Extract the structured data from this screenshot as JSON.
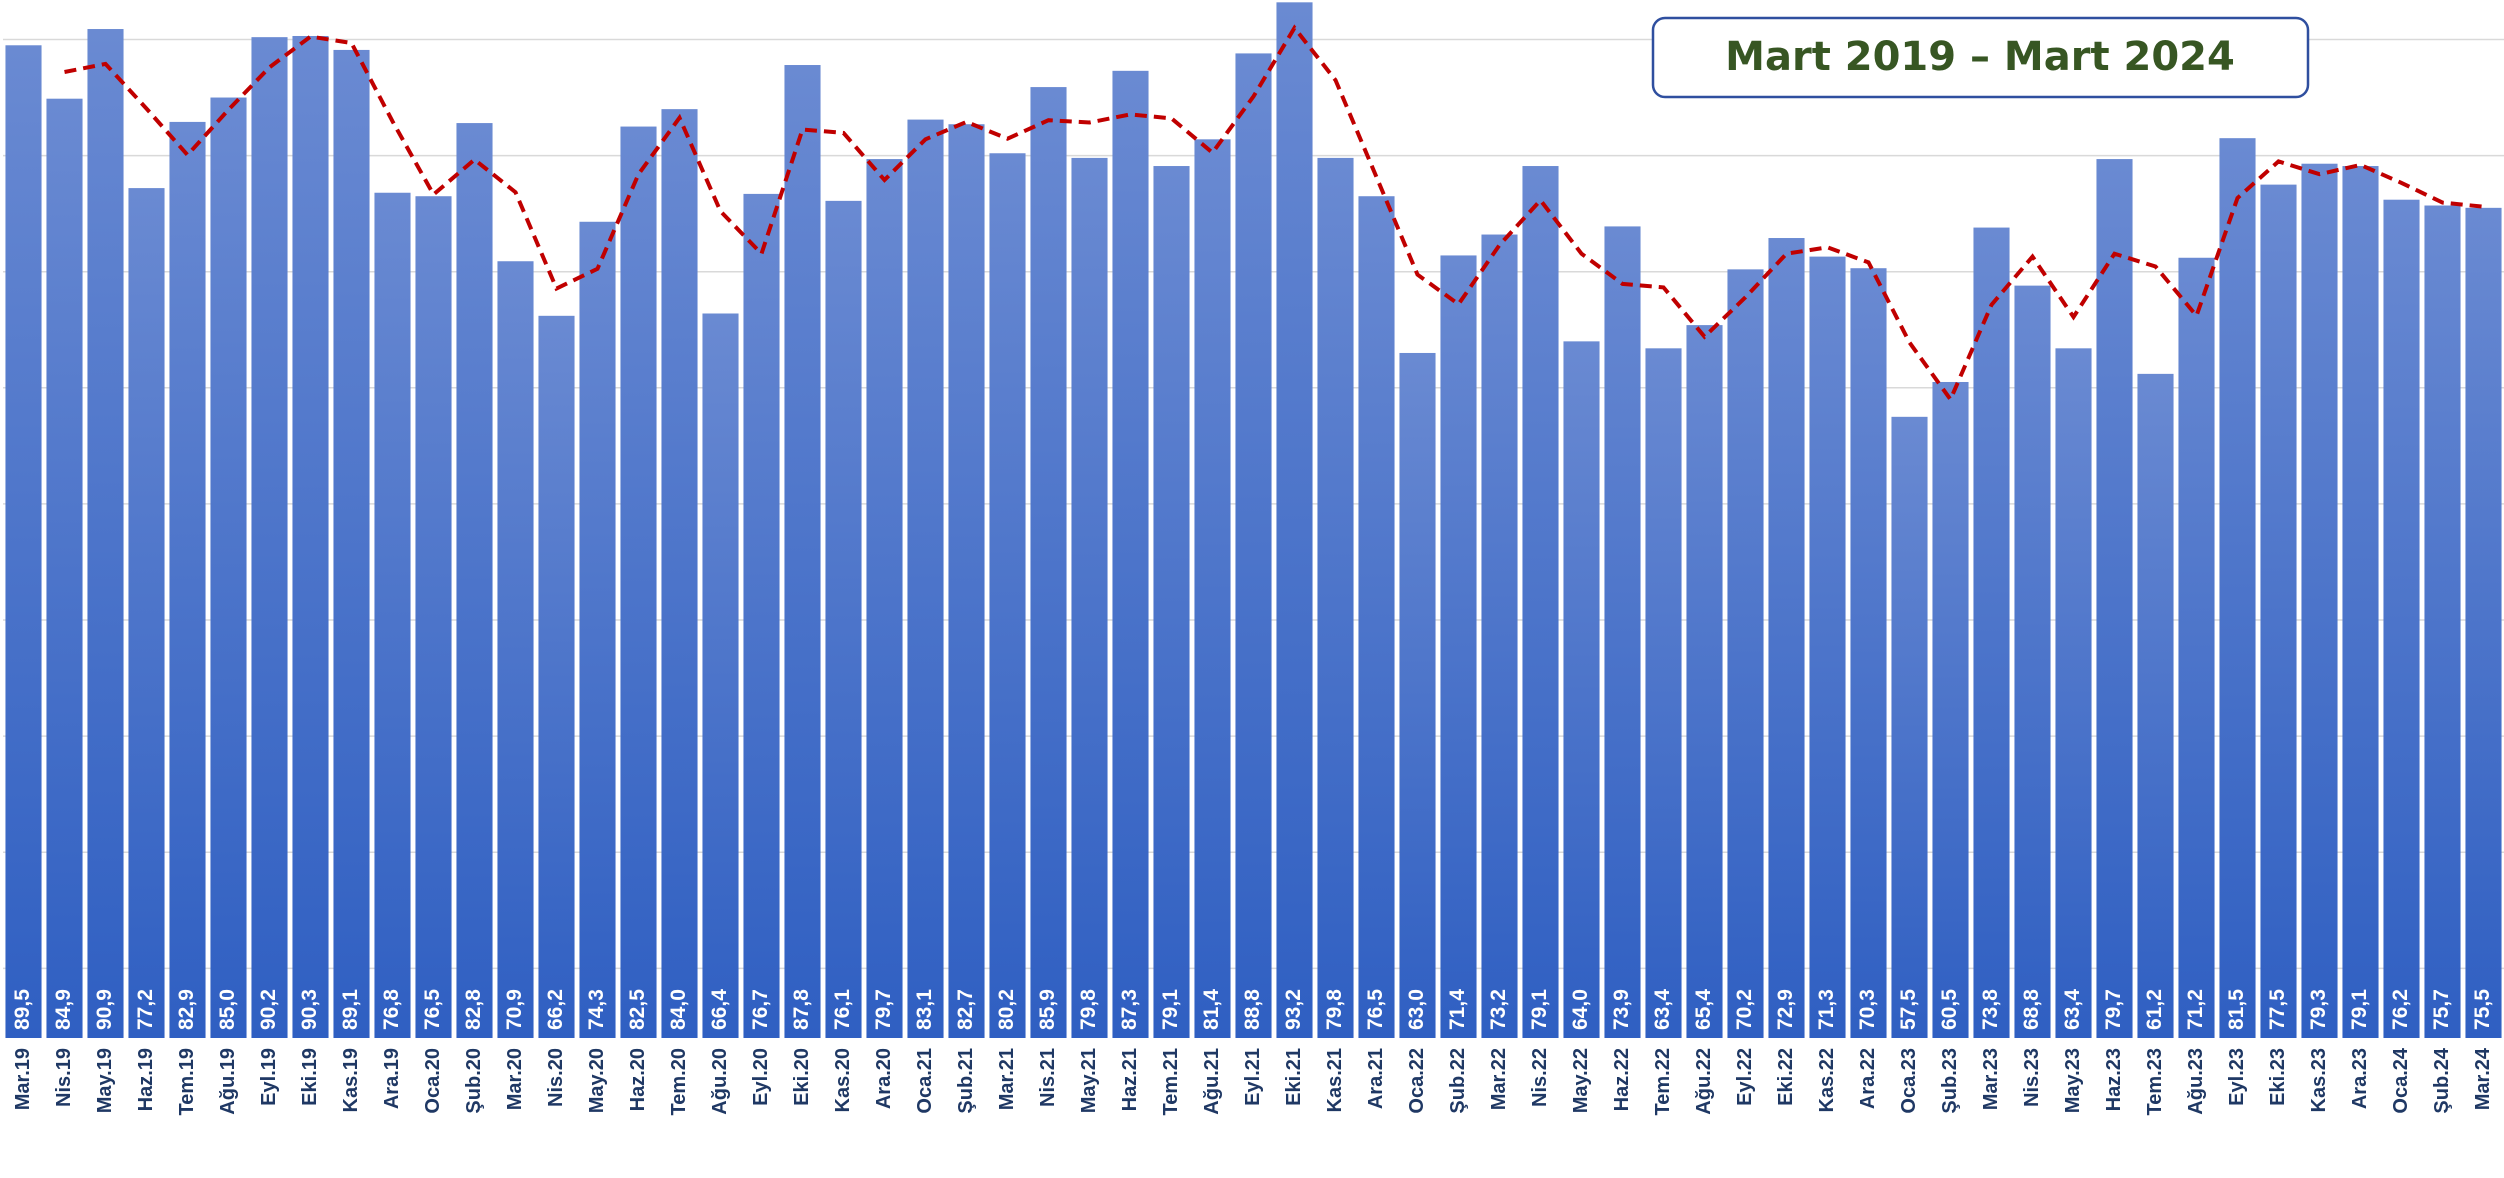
{
  "chart_data": {
    "type": "bar",
    "title": "Mart 2019 – Mart 2024",
    "categories": [
      "Mar.19",
      "Nis.19",
      "May.19",
      "Haz.19",
      "Tem.19",
      "Ağu.19",
      "Eyl.19",
      "Eki.19",
      "Kas.19",
      "Ara.19",
      "Oca.20",
      "Şub.20",
      "Mar.20",
      "Nis.20",
      "May.20",
      "Haz.20",
      "Tem.20",
      "Ağu.20",
      "Eyl.20",
      "Eki.20",
      "Kas.20",
      "Ara.20",
      "Oca.21",
      "Şub.21",
      "Mar.21",
      "Nis.21",
      "May.21",
      "Haz.21",
      "Tem.21",
      "Ağu.21",
      "Eyl.21",
      "Eki.21",
      "Kas.21",
      "Ara.21",
      "Oca.22",
      "Şub.22",
      "Mar.22",
      "Nis.22",
      "May.22",
      "Haz.22",
      "Tem.22",
      "Ağu.22",
      "Eyl.22",
      "Eki.22",
      "Kas.22",
      "Ara.22",
      "Oca.23",
      "Şub.23",
      "Mar.23",
      "Nis.23",
      "May.23",
      "Haz.23",
      "Tem.23",
      "Ağu.23",
      "Eyl.23",
      "Eki.23",
      "Kas.23",
      "Ara.23",
      "Oca.24",
      "Şub.24",
      "Mar.24"
    ],
    "series": [
      {
        "type": "bar",
        "color": "#4472c4",
        "values": [
          89.5,
          84.9,
          90.9,
          77.2,
          82.9,
          85.0,
          90.2,
          90.3,
          89.1,
          76.8,
          76.5,
          82.8,
          70.9,
          66.2,
          74.3,
          82.5,
          84.0,
          66.4,
          76.7,
          87.8,
          76.1,
          79.7,
          83.1,
          82.7,
          80.2,
          85.9,
          79.8,
          87.3,
          79.1,
          81.4,
          88.8,
          93.2,
          79.8,
          76.5,
          63.0,
          71.4,
          73.2,
          79.1,
          64.0,
          73.9,
          63.4,
          65.4,
          70.2,
          72.9,
          71.3,
          70.3,
          57.5,
          60.5,
          73.8,
          68.8,
          63.4,
          79.7,
          61.2,
          71.2,
          81.5,
          77.5,
          79.3,
          79.1,
          76.2,
          75.7,
          75.5
        ],
        "value_labels": [
          "89,5",
          "84,9",
          "90,9",
          "77,2",
          "82,9",
          "85,0",
          "90,2",
          "90,3",
          "89,1",
          "76,8",
          "76,5",
          "82,8",
          "70,9",
          "66,2",
          "74,3",
          "82,5",
          "84,0",
          "66,4",
          "76,7",
          "87,8",
          "76,1",
          "79,7",
          "83,1",
          "82,7",
          "80,2",
          "85,9",
          "79,8",
          "87,3",
          "79,1",
          "81,4",
          "88,8",
          "93,2",
          "79,8",
          "76,5",
          "63,0",
          "71,4",
          "73,2",
          "79,1",
          "64,0",
          "73,9",
          "63,4",
          "65,4",
          "70,2",
          "72,9",
          "71,3",
          "70,3",
          "57,5",
          "60,5",
          "73,8",
          "68,8",
          "63,4",
          "79,7",
          "61,2",
          "71,2",
          "81,5",
          "77,5",
          "79,3",
          "79,1",
          "76,2",
          "75,7",
          "75,5"
        ]
      },
      {
        "type": "line",
        "color": "#c00000",
        "dashed": true,
        "values": [
          null,
          87.2,
          87.9,
          84.05,
          80.05,
          83.95,
          87.6,
          90.25,
          89.7,
          82.95,
          76.65,
          79.65,
          76.85,
          68.55,
          70.25,
          78.4,
          83.25,
          75.2,
          71.55,
          82.25,
          81.95,
          77.9,
          81.4,
          82.9,
          81.45,
          83.05,
          82.85,
          83.55,
          83.2,
          80.25,
          85.1,
          91,
          86.5,
          78.15,
          69.75,
          67.2,
          72.3,
          76.15,
          71.55,
          68.95,
          68.65,
          64.4,
          67.8,
          71.55,
          72.1,
          70.8,
          63.9,
          59,
          67.15,
          71.3,
          66.1,
          71.55,
          70.45,
          66.2,
          76.35,
          79.5,
          78.4,
          79.2,
          77.65,
          75.95,
          75.6
        ]
      }
    ],
    "ylim": [
      4,
      93.4
    ],
    "yticks": [
      10,
      20,
      30,
      40,
      50,
      60,
      70,
      80,
      90
    ],
    "grid": true
  }
}
